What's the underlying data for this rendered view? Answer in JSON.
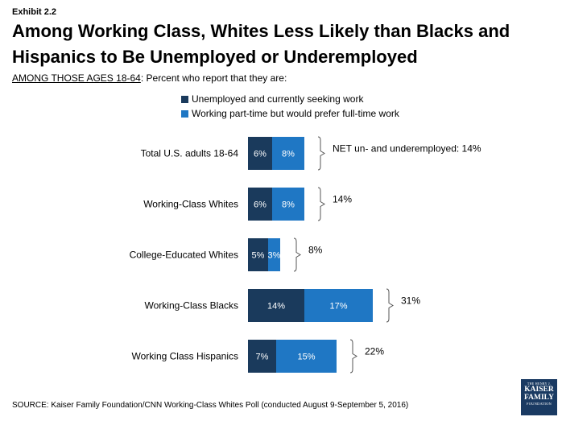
{
  "exhibit": "Exhibit 2.2",
  "title": "Among Working Class, Whites Less Likely than Blacks and Hispanics to Be Unemployed or Underemployed",
  "subtitle_prefix": "AMONG THOSE AGES 18-64",
  "subtitle_rest": ": Percent who report that they are:",
  "colors": {
    "unemployed": "#1a3a5c",
    "parttime": "#1f77c4"
  },
  "chart_data": {
    "type": "bar",
    "orientation": "horizontal",
    "stacked": true,
    "categories": [
      "Total U.S. adults 18-64",
      "Working-Class Whites",
      "College-Educated Whites",
      "Working-Class Blacks",
      "Working Class Hispanics"
    ],
    "series": [
      {
        "name": "Unemployed and currently seeking work",
        "values": [
          6,
          6,
          5,
          14,
          7
        ],
        "labels": [
          "6%",
          "6%",
          "5%",
          "14%",
          "7%"
        ]
      },
      {
        "name": "Working part-time but would prefer full-time work",
        "values": [
          8,
          8,
          3,
          17,
          15
        ],
        "labels": [
          "8%",
          "8%",
          "3%",
          "17%",
          "15%"
        ]
      }
    ],
    "net_labels": [
      "NET un- and underemployed: 14%",
      "14%",
      "8%",
      "31%",
      "22%"
    ],
    "legend_position": "top",
    "grid": false
  },
  "source": "SOURCE: Kaiser Family Foundation/CNN Working-Class Whites Poll (conducted August 9-September 5, 2016)",
  "logo": {
    "line1": "THE HENRY J.",
    "line2": "KAISER",
    "line3": "FAMILY",
    "line4": "FOUNDATION"
  }
}
